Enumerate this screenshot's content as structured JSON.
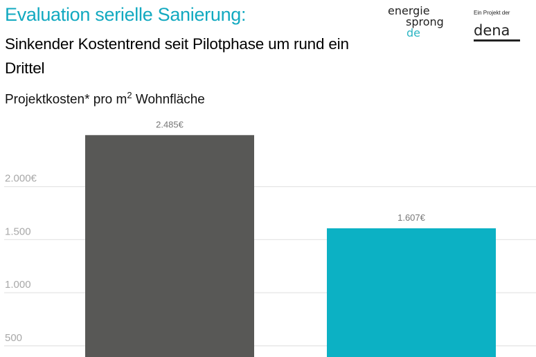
{
  "header": {
    "title": "Evaluation serielle Sanierung:",
    "subtitle": "Sinkender Kostentrend seit Pilotphase um rund ein Drittel",
    "unit_label": "Projektkosten* pro m",
    "unit_sup": "2",
    "unit_suffix": " Wohnfläche"
  },
  "logos": {
    "energiesprong": [
      "energie",
      "sprong",
      "de"
    ],
    "dena_sub": "Ein Projekt der",
    "dena": "dena"
  },
  "chart_data": {
    "type": "bar",
    "title": "",
    "categories": [
      "",
      ""
    ],
    "values": [
      2485,
      1607
    ],
    "data_labels": [
      "2.485€",
      "1.607€"
    ],
    "colors": [
      "#585856",
      "#0cb1c4"
    ],
    "yticks": [
      500,
      1000,
      1500,
      2000
    ],
    "ytick_labels": [
      "500",
      "1.000",
      "1.500",
      "2.000€"
    ],
    "grid": true,
    "ylim_visible": [
      450,
      2600
    ]
  }
}
